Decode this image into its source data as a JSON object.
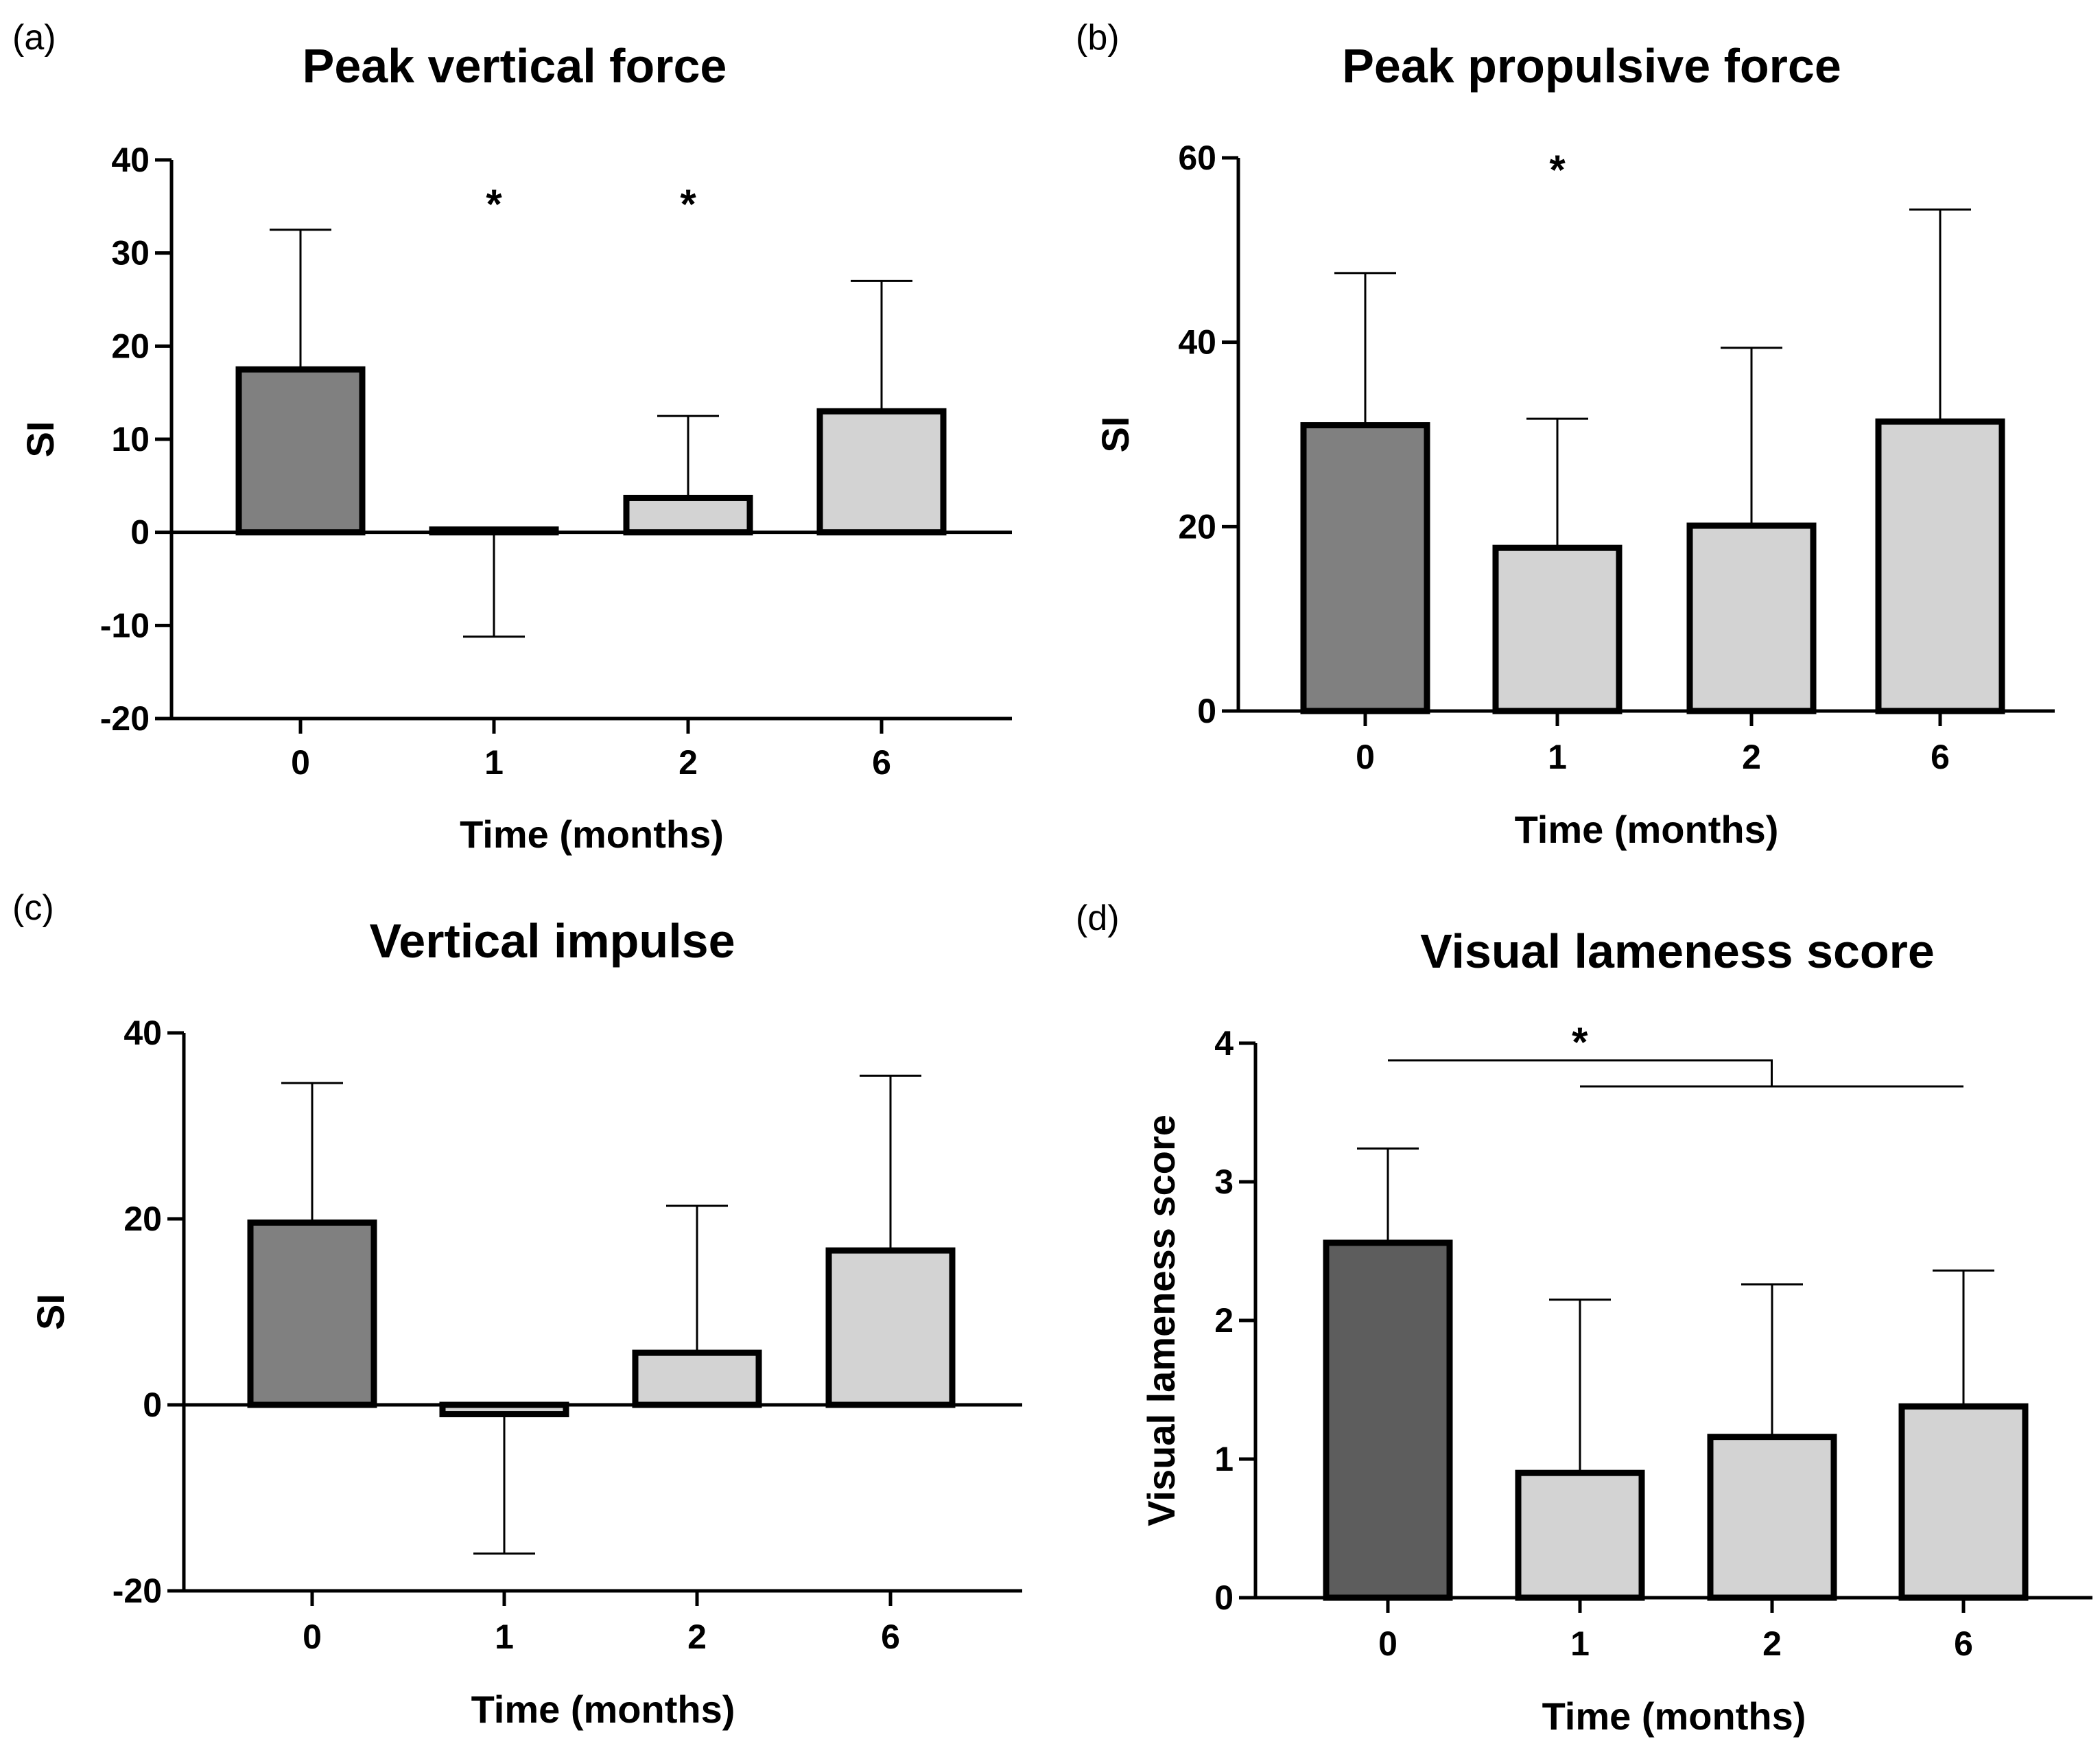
{
  "chart_data": [
    {
      "type": "bar",
      "panel_label": "(a)",
      "title": "Peak vertical force",
      "xlabel": "Time (months)",
      "ylabel": "SI",
      "categories": [
        "0",
        "1",
        "2",
        "6"
      ],
      "values": [
        17.5,
        0.3,
        3.7,
        13
      ],
      "error_bars": [
        15,
        -11.5,
        8.8,
        14
      ],
      "ylim": [
        -20,
        40
      ],
      "yticks": [
        40,
        30,
        20,
        10,
        0,
        -10,
        -20
      ],
      "bar_colors": [
        "#808080",
        "#d3d3d3",
        "#d3d3d3",
        "#d3d3d3"
      ],
      "significance": [
        "",
        "*",
        "*",
        ""
      ]
    },
    {
      "type": "bar",
      "panel_label": "(b)",
      "title": "Peak propulsive force",
      "xlabel": "Time (months)",
      "ylabel": "SI",
      "categories": [
        "0",
        "1",
        "2",
        "6"
      ],
      "values": [
        31,
        17.7,
        20.1,
        31.4
      ],
      "error_bars": [
        16.5,
        14,
        19.3,
        23
      ],
      "ylim": [
        0,
        60
      ],
      "yticks": [
        60,
        40,
        20,
        0
      ],
      "bar_colors": [
        "#808080",
        "#d3d3d3",
        "#d3d3d3",
        "#d3d3d3"
      ],
      "significance": [
        "",
        "*",
        "",
        ""
      ]
    },
    {
      "type": "bar",
      "panel_label": "(c)",
      "title": "Vertical impulse",
      "xlabel": "Time (months)",
      "ylabel": "SI",
      "categories": [
        "0",
        "1",
        "2",
        "6"
      ],
      "values": [
        19.6,
        -1,
        5.6,
        16.6
      ],
      "error_bars": [
        15,
        -15,
        15.8,
        18.8
      ],
      "ylim": [
        -20,
        40
      ],
      "yticks": [
        40,
        20,
        0,
        -20
      ],
      "bar_colors": [
        "#808080",
        "#d3d3d3",
        "#d3d3d3",
        "#d3d3d3"
      ],
      "significance": [
        "",
        "",
        "",
        ""
      ]
    },
    {
      "type": "bar",
      "panel_label": "(d)",
      "title": "Visual lameness score",
      "xlabel": "Time (months)",
      "ylabel": "Visual lameness score",
      "categories": [
        "0",
        "1",
        "2",
        "6"
      ],
      "values": [
        2.56,
        0.9,
        1.16,
        1.38
      ],
      "error_bars": [
        0.68,
        1.25,
        1.1,
        0.98
      ],
      "ylim": [
        0,
        4
      ],
      "yticks": [
        4,
        3,
        2,
        1,
        0
      ],
      "bar_colors": [
        "#5d5d5d",
        "#d3d3d3",
        "#d3d3d3",
        "#d3d3d3"
      ],
      "significance": [
        "",
        "",
        "",
        ""
      ],
      "bracket": {
        "label": "*",
        "from": "0",
        "to": [
          "1",
          "6"
        ]
      }
    }
  ]
}
